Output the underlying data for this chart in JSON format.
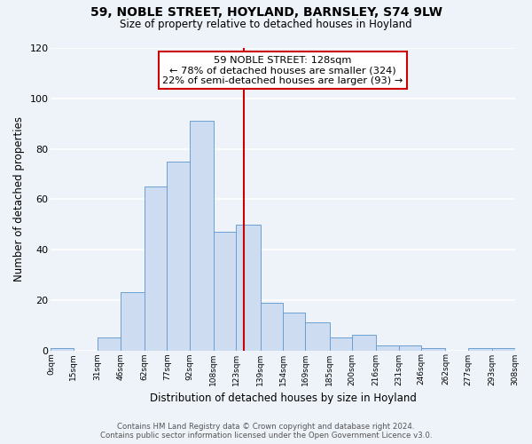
{
  "title": "59, NOBLE STREET, HOYLAND, BARNSLEY, S74 9LW",
  "subtitle": "Size of property relative to detached houses in Hoyland",
  "xlabel": "Distribution of detached houses by size in Hoyland",
  "ylabel": "Number of detached properties",
  "bar_left_edges": [
    0,
    15,
    31,
    46,
    62,
    77,
    92,
    108,
    123,
    139,
    154,
    169,
    185,
    200,
    216,
    231,
    246,
    262,
    277,
    293
  ],
  "bar_widths": [
    15,
    16,
    15,
    16,
    15,
    15,
    16,
    15,
    16,
    15,
    15,
    16,
    15,
    16,
    15,
    15,
    16,
    15,
    16,
    15
  ],
  "bar_heights": [
    1,
    0,
    5,
    23,
    65,
    75,
    91,
    47,
    50,
    19,
    15,
    11,
    5,
    6,
    2,
    2,
    1,
    0,
    1,
    1
  ],
  "tick_labels": [
    "0sqm",
    "15sqm",
    "31sqm",
    "46sqm",
    "62sqm",
    "77sqm",
    "92sqm",
    "108sqm",
    "123sqm",
    "139sqm",
    "154sqm",
    "169sqm",
    "185sqm",
    "200sqm",
    "216sqm",
    "231sqm",
    "246sqm",
    "262sqm",
    "277sqm",
    "293sqm",
    "308sqm"
  ],
  "bar_color": "#cddcf0",
  "bar_edge_color": "#6b9fd4",
  "vline_x": 128,
  "vline_color": "#cc0000",
  "annotation_title": "59 NOBLE STREET: 128sqm",
  "annotation_line1": "← 78% of detached houses are smaller (324)",
  "annotation_line2": "22% of semi-detached houses are larger (93) →",
  "annotation_box_color": "#ffffff",
  "annotation_box_edge": "#cc0000",
  "ylim": [
    0,
    120
  ],
  "yticks": [
    0,
    20,
    40,
    60,
    80,
    100,
    120
  ],
  "footer_line1": "Contains HM Land Registry data © Crown copyright and database right 2024.",
  "footer_line2": "Contains public sector information licensed under the Open Government Licence v3.0.",
  "bg_color": "#eef2f9",
  "grid_color": "#ffffff"
}
